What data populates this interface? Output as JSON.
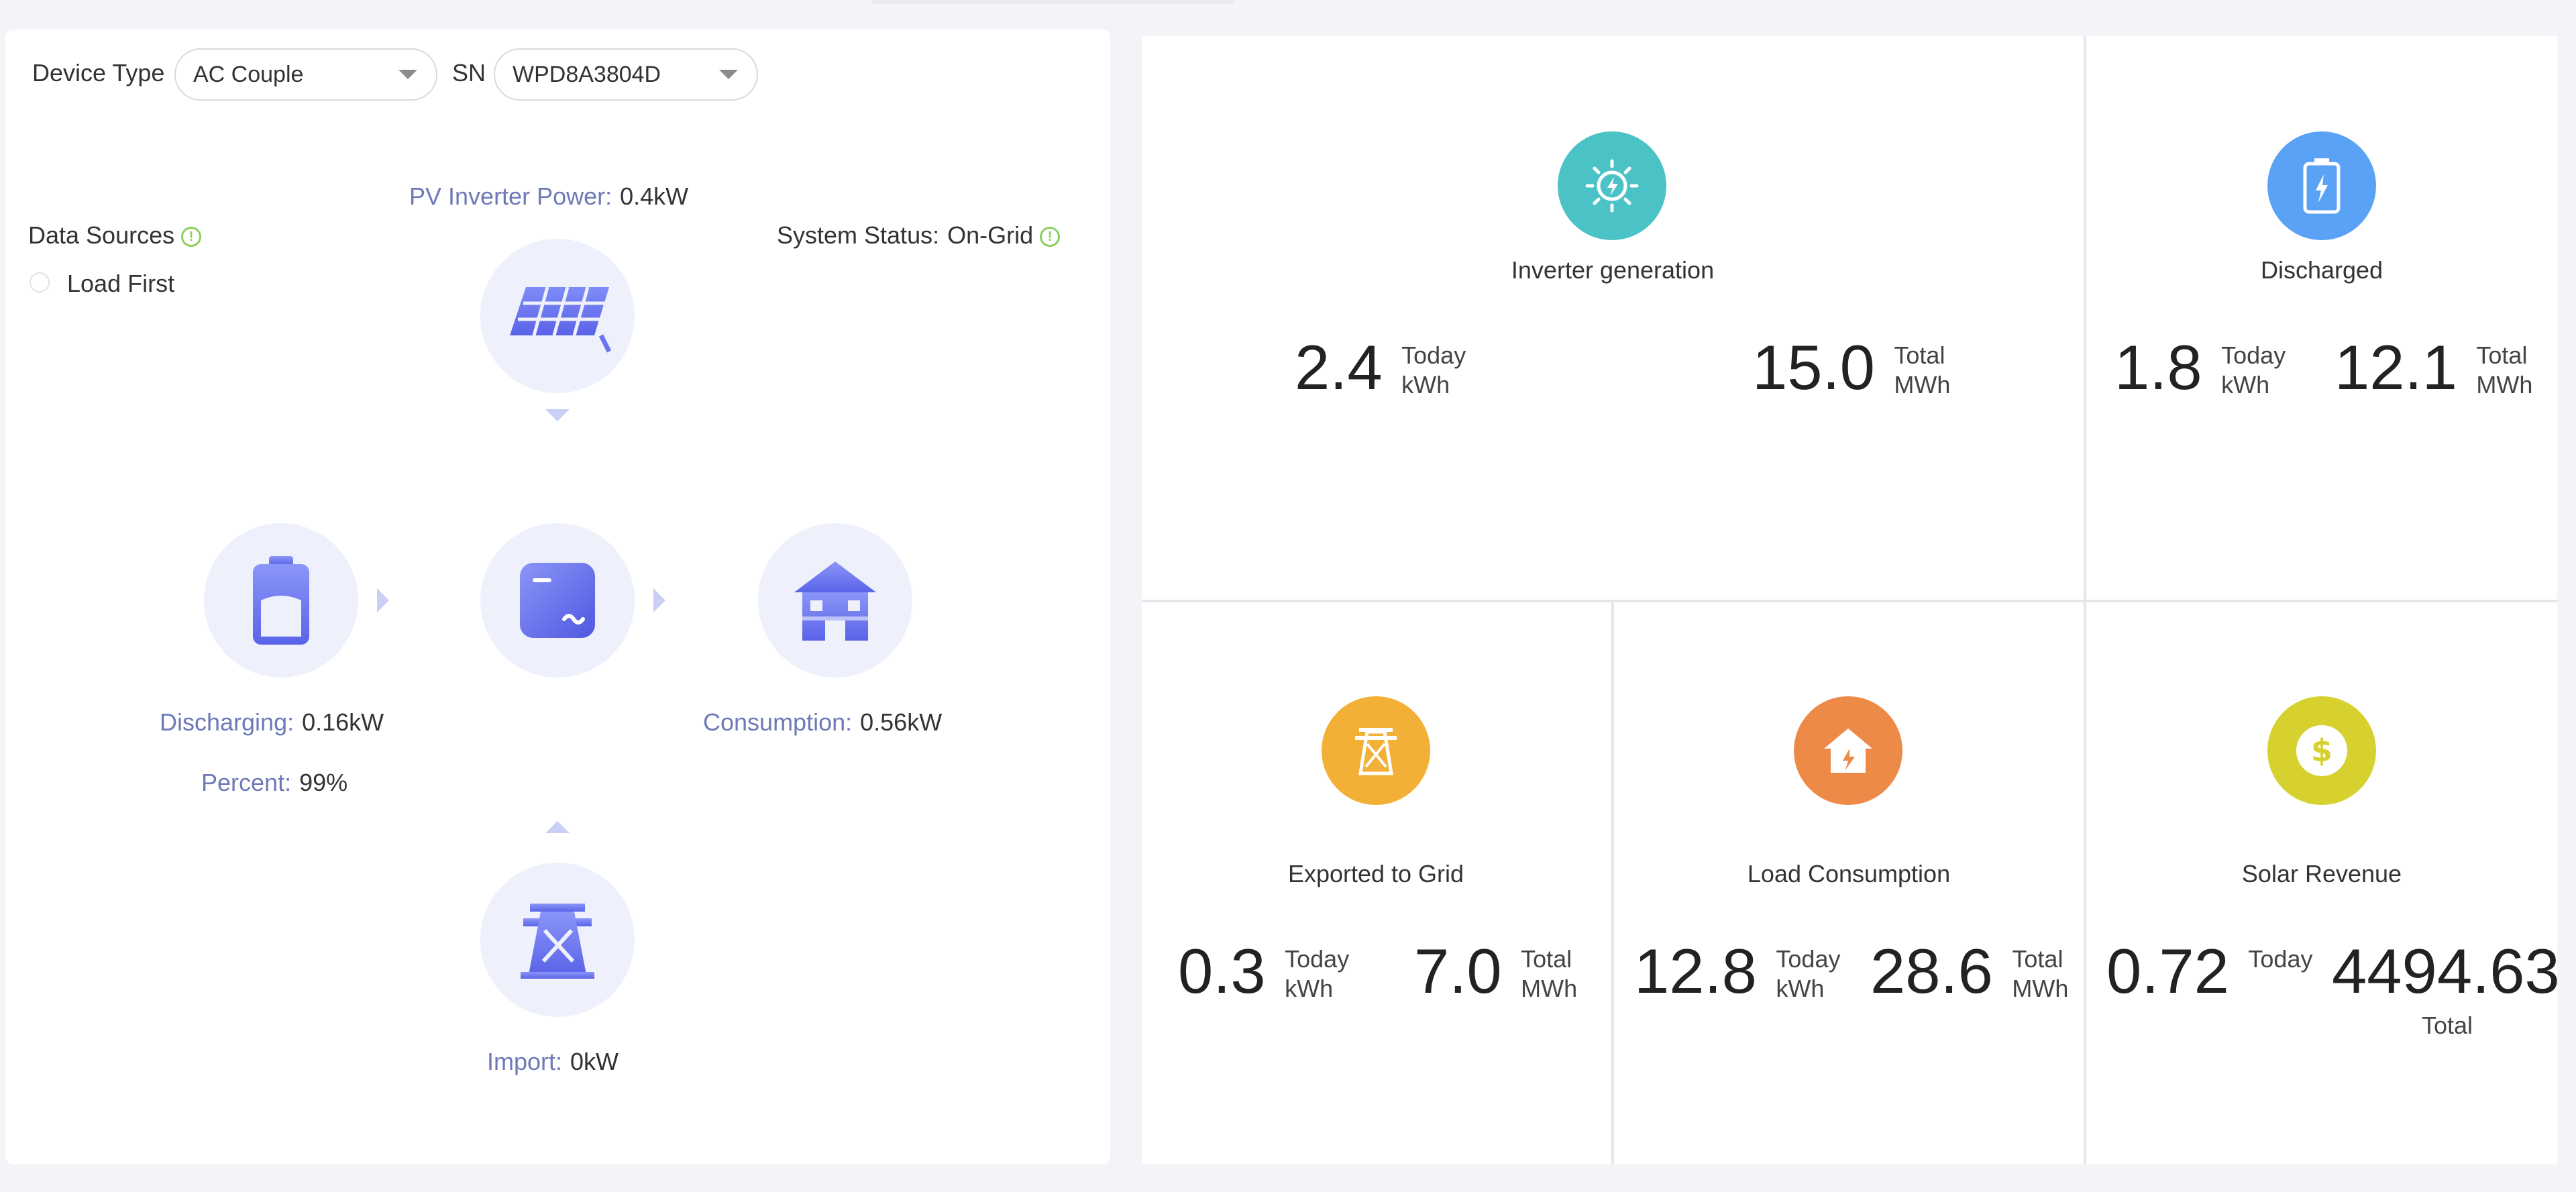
{
  "filters": {
    "device_type_label": "Device Type",
    "device_type_value": "AC Couple",
    "sn_label": "SN",
    "sn_value": "WPD8A3804D"
  },
  "flow": {
    "pv_label": "PV Inverter Power:",
    "pv_value": "0.4kW",
    "data_sources_label": "Data Sources",
    "load_first_label": "Load First",
    "system_status_label": "System Status:",
    "system_status_value": "On-Grid",
    "discharging_label": "Discharging:",
    "discharging_value": "0.16kW",
    "percent_label": "Percent:",
    "percent_value": "99%",
    "consumption_label": "Consumption:",
    "consumption_value": "0.56kW",
    "import_label": "Import:",
    "import_value": "0kW",
    "icons": [
      "solar-panel-icon",
      "battery-icon",
      "inverter-icon",
      "house-icon",
      "grid-tower-icon"
    ]
  },
  "stats": {
    "inverter_generation": {
      "title": "Inverter generation",
      "today_value": "2.4",
      "today_label": "Today",
      "today_unit": "kWh",
      "total_value": "15.0",
      "total_label": "Total",
      "total_unit": "MWh",
      "color": "#4bc3c6"
    },
    "discharged": {
      "title": "Discharged",
      "today_value": "1.8",
      "today_label": "Today",
      "today_unit": "kWh",
      "total_value": "12.1",
      "total_label": "Total",
      "total_unit": "MWh",
      "color": "#5aa2f5"
    },
    "exported_to_grid": {
      "title": "Exported to Grid",
      "today_value": "0.3",
      "today_label": "Today",
      "today_unit": "kWh",
      "total_value": "7.0",
      "total_label": "Total",
      "total_unit": "MWh",
      "color": "#f3b036"
    },
    "load_consumption": {
      "title": "Load Consumption",
      "today_value": "12.8",
      "today_label": "Today",
      "today_unit": "kWh",
      "total_value": "28.6",
      "total_label": "Total",
      "total_unit": "MWh",
      "color": "#ee8a48"
    },
    "solar_revenue": {
      "title": "Solar Revenue",
      "today_value": "0.72",
      "today_label": "Today",
      "total_value": "4494.63",
      "total_label": "Total",
      "color": "#d6d12e"
    }
  }
}
